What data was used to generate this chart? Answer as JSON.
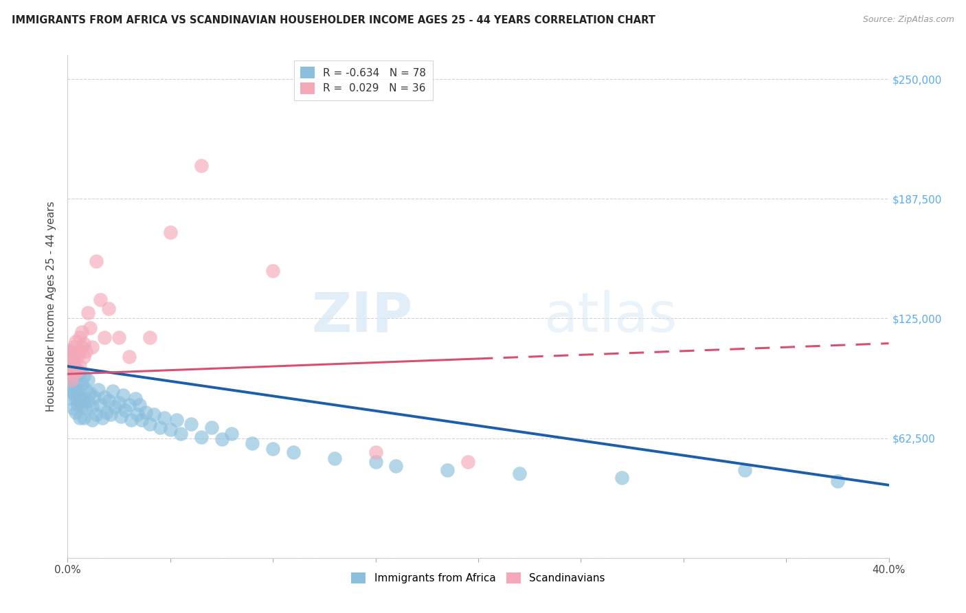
{
  "title": "IMMIGRANTS FROM AFRICA VS SCANDINAVIAN HOUSEHOLDER INCOME AGES 25 - 44 YEARS CORRELATION CHART",
  "source": "Source: ZipAtlas.com",
  "ylabel": "Householder Income Ages 25 - 44 years",
  "xlim": [
    0.0,
    0.4
  ],
  "ylim": [
    0,
    262500
  ],
  "yticks": [
    0,
    62500,
    125000,
    187500,
    250000
  ],
  "ytick_labels": [
    "",
    "$62,500",
    "$125,000",
    "$187,500",
    "$250,000"
  ],
  "xticks": [
    0.0,
    0.05,
    0.1,
    0.15,
    0.2,
    0.25,
    0.3,
    0.35,
    0.4
  ],
  "blue_color": "#8bbfdd",
  "pink_color": "#f4a8b8",
  "blue_line_color": "#1a5fa8",
  "pink_line_color": "#d94f70",
  "legend_blue_label_R": "-0.634",
  "legend_blue_label_N": "78",
  "legend_pink_label_R": "0.029",
  "legend_pink_label_N": "36",
  "watermark_zip": "ZIP",
  "watermark_atlas": "atlas",
  "blue_x": [
    0.001,
    0.001,
    0.001,
    0.002,
    0.002,
    0.002,
    0.002,
    0.003,
    0.003,
    0.003,
    0.003,
    0.004,
    0.004,
    0.004,
    0.004,
    0.005,
    0.005,
    0.005,
    0.006,
    0.006,
    0.006,
    0.007,
    0.007,
    0.008,
    0.008,
    0.008,
    0.009,
    0.009,
    0.01,
    0.01,
    0.011,
    0.012,
    0.012,
    0.013,
    0.014,
    0.015,
    0.016,
    0.017,
    0.018,
    0.019,
    0.02,
    0.021,
    0.022,
    0.023,
    0.025,
    0.026,
    0.027,
    0.028,
    0.03,
    0.031,
    0.033,
    0.034,
    0.035,
    0.036,
    0.038,
    0.04,
    0.042,
    0.045,
    0.047,
    0.05,
    0.053,
    0.055,
    0.06,
    0.065,
    0.07,
    0.075,
    0.08,
    0.09,
    0.1,
    0.11,
    0.13,
    0.15,
    0.16,
    0.185,
    0.22,
    0.27,
    0.33,
    0.375
  ],
  "blue_y": [
    108000,
    95000,
    88000,
    103000,
    97000,
    90000,
    83000,
    100000,
    94000,
    86000,
    78000,
    99000,
    91000,
    83000,
    76000,
    96000,
    88000,
    80000,
    97000,
    84000,
    73000,
    91000,
    80000,
    95000,
    83000,
    73000,
    88000,
    78000,
    93000,
    82000,
    86000,
    79000,
    72000,
    84000,
    75000,
    88000,
    80000,
    73000,
    84000,
    76000,
    82000,
    75000,
    87000,
    79000,
    81000,
    74000,
    85000,
    77000,
    80000,
    72000,
    83000,
    75000,
    80000,
    72000,
    76000,
    70000,
    75000,
    68000,
    73000,
    67000,
    72000,
    65000,
    70000,
    63000,
    68000,
    62000,
    65000,
    60000,
    57000,
    55000,
    52000,
    50000,
    48000,
    46000,
    44000,
    42000,
    46000,
    40000
  ],
  "pink_x": [
    0.001,
    0.001,
    0.002,
    0.002,
    0.002,
    0.003,
    0.003,
    0.003,
    0.004,
    0.004,
    0.004,
    0.005,
    0.005,
    0.006,
    0.006,
    0.006,
    0.007,
    0.007,
    0.008,
    0.008,
    0.009,
    0.01,
    0.011,
    0.012,
    0.014,
    0.016,
    0.018,
    0.02,
    0.025,
    0.03,
    0.04,
    0.05,
    0.065,
    0.1,
    0.15,
    0.195
  ],
  "pink_y": [
    105000,
    97000,
    108000,
    100000,
    93000,
    110000,
    103000,
    96000,
    107000,
    99000,
    113000,
    105000,
    98000,
    115000,
    108000,
    100000,
    118000,
    110000,
    112000,
    105000,
    108000,
    128000,
    120000,
    110000,
    155000,
    135000,
    115000,
    130000,
    115000,
    105000,
    115000,
    170000,
    205000,
    150000,
    55000,
    50000
  ],
  "blue_trend_x": [
    0.0,
    0.4
  ],
  "blue_trend_y": [
    100000,
    38000
  ],
  "pink_trend_x": [
    0.0,
    0.22,
    0.4
  ],
  "pink_trend_y": [
    96000,
    107000,
    112000
  ]
}
